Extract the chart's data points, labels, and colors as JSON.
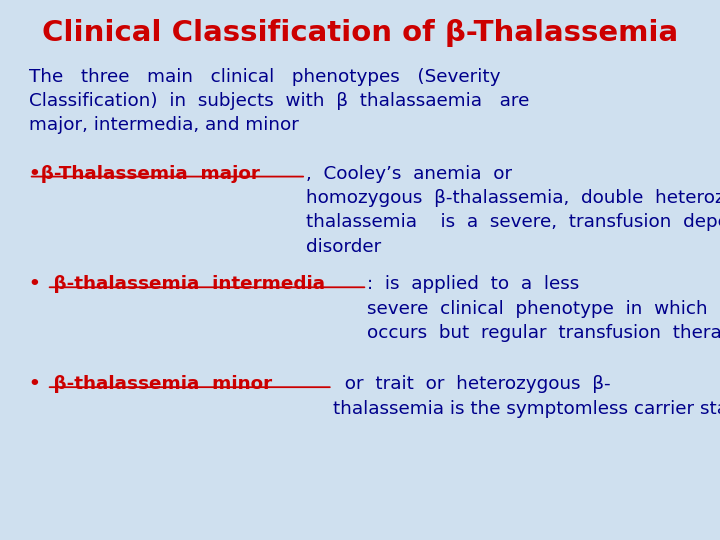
{
  "title": "Clinical Classification of β-Thalassemia",
  "title_color": "#cc0000",
  "title_fontsize": 21,
  "body_fontsize": 13.2,
  "bg_color": "#cfe0ef",
  "text_color": "#00008B",
  "red_color": "#cc0000",
  "intro_text": "The   three   main   clinical   phenotypes   (Severity\nClassification)  in  subjects  with  β  thalassaemia   are\nmajor, intermedia, and minor",
  "bullet1_label": "•β-Thalassemia  major",
  "bullet1_rest": ",  Cooley’s  anemia  or\nhomozygous  β-thalassemia,  double  heterozygous  β-\nthalassemia    is  a  severe,  transfusion  dependent\ndisorder",
  "bullet2_label": "•  β-thalassemia  intermedia",
  "bullet2_rest": ":  is  applied  to  a  less\nsevere  clinical  phenotype  in  which  significant  anemia\noccurs  but  regular  transfusion  therapy  is  not  required",
  "bullet3_label": "•  β-thalassemia  minor",
  "bullet3_rest": "  or  trait  or  heterozygous  β-\nthalassemia is the symptomless carrier state."
}
